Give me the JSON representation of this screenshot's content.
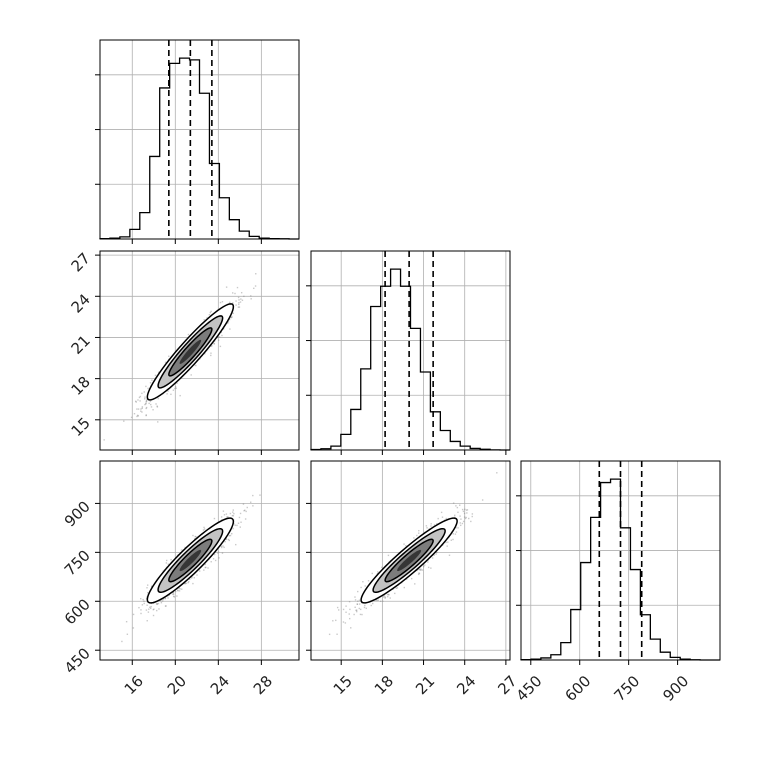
{
  "chart_data": {
    "type": "corner",
    "grid": true,
    "variables": [
      {
        "id": "p0",
        "range": [
          13,
          31.5
        ],
        "ticks": [
          16,
          20,
          24,
          28
        ],
        "quantiles": [
          19.4,
          21.4,
          23.4
        ],
        "tick_labels": [
          "16",
          "20",
          "24",
          "28"
        ]
      },
      {
        "id": "p1",
        "range": [
          12.8,
          27.3
        ],
        "ticks": [
          15,
          18,
          21,
          24,
          27
        ],
        "quantiles": [
          18.2,
          19.95,
          21.7
        ],
        "tick_labels": [
          "15",
          "18",
          "21",
          "24",
          "27"
        ]
      },
      {
        "id": "p2",
        "range": [
          420,
          1030
        ],
        "ticks": [
          450,
          600,
          750,
          900
        ],
        "quantiles": [
          660,
          725,
          790
        ],
        "tick_labels": [
          "450",
          "600",
          "750",
          "900"
        ]
      }
    ],
    "histograms": [
      {
        "variable": "p0",
        "bin_start": 13,
        "bin_width": 0.925,
        "counts": [
          2,
          5,
          12,
          55,
          150,
          470,
          860,
          1000,
          1030,
          1020,
          830,
          430,
          235,
          110,
          45,
          15,
          5,
          2,
          1,
          0
        ]
      },
      {
        "variable": "p1",
        "bin_start": 12.8,
        "bin_width": 0.725,
        "counts": [
          3,
          8,
          25,
          100,
          260,
          520,
          920,
          1050,
          1160,
          1050,
          780,
          500,
          245,
          125,
          55,
          25,
          10,
          5,
          1,
          0
        ]
      },
      {
        "variable": "p2",
        "bin_start": 420,
        "bin_width": 30.5,
        "counts": [
          2,
          5,
          12,
          30,
          100,
          290,
          560,
          820,
          1020,
          1040,
          760,
          520,
          260,
          120,
          45,
          15,
          5,
          1,
          0,
          0
        ]
      }
    ],
    "joint_2d": [
      {
        "x": "p0",
        "y": "p1",
        "mean": [
          21.4,
          19.95
        ],
        "sd": [
          2.0,
          1.75
        ],
        "rho": 0.94
      },
      {
        "x": "p0",
        "y": "p2",
        "mean": [
          21.4,
          725
        ],
        "sd": [
          2.0,
          65
        ],
        "rho": 0.92
      },
      {
        "x": "p1",
        "y": "p2",
        "mean": [
          19.95,
          725
        ],
        "sd": [
          1.75,
          65
        ],
        "rho": 0.93
      }
    ],
    "contour_levels_sigma": [
      0.5,
      1.0,
      1.5,
      2.0
    ],
    "colors": {
      "line": "#000000",
      "grid": "#b0b0b0",
      "points": "#888888"
    }
  }
}
